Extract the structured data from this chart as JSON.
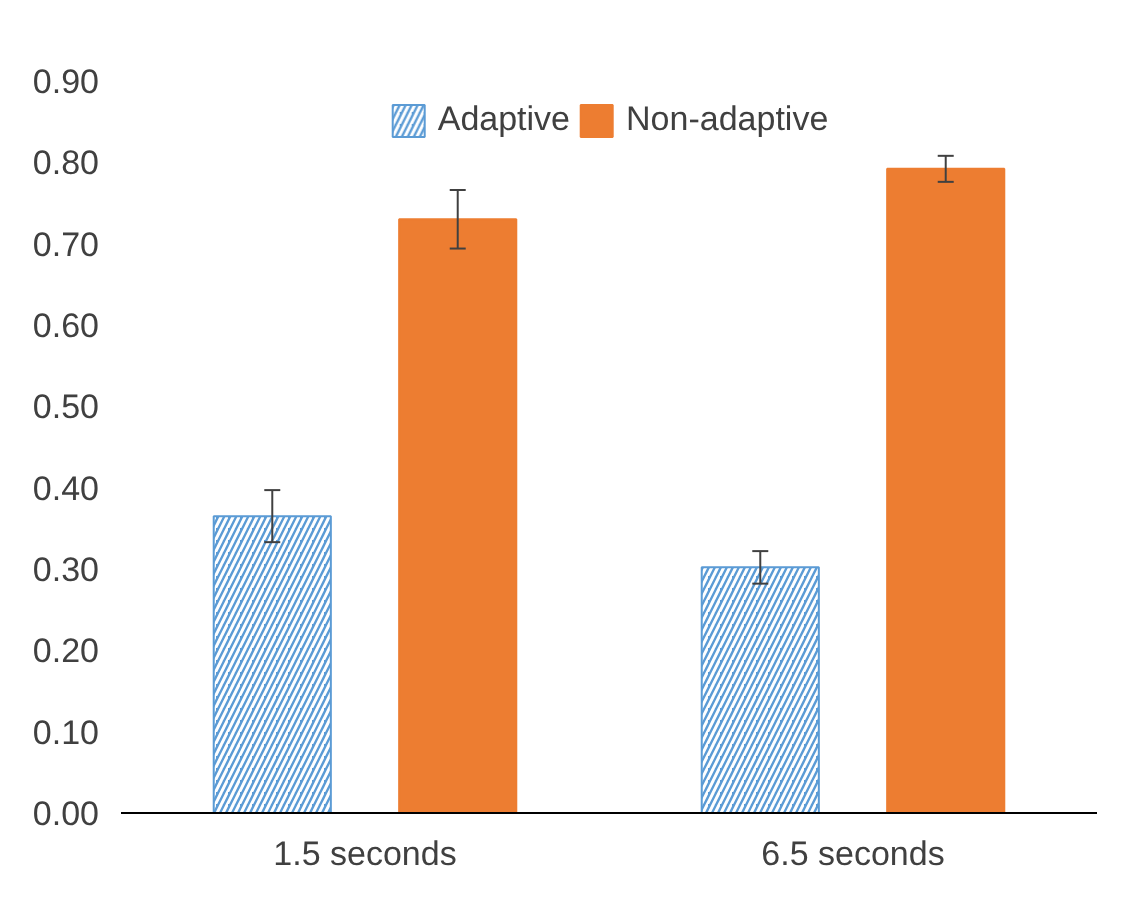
{
  "chart_data": {
    "type": "bar",
    "categories": [
      "1.5 seconds",
      "6.5 seconds"
    ],
    "series": [
      {
        "name": "Adaptive",
        "color": "#5b9bd5",
        "values": [
          0.365,
          0.302
        ],
        "errors": [
          0.032,
          0.02
        ]
      },
      {
        "name": "Non-adaptive",
        "color": "#ed7d31",
        "values": [
          0.73,
          0.792
        ],
        "errors": [
          0.036,
          0.016
        ]
      }
    ],
    "ylim": [
      0,
      0.9
    ],
    "yticks": [
      {
        "value": 0,
        "label": "0.00"
      },
      {
        "value": 0.1,
        "label": "0.10"
      },
      {
        "value": 0.2,
        "label": "0.20"
      },
      {
        "value": 0.3,
        "label": "0.30"
      },
      {
        "value": 0.4,
        "label": "0.40"
      },
      {
        "value": 0.5,
        "label": "0.50"
      },
      {
        "value": 0.6,
        "label": "0.60"
      },
      {
        "value": 0.7,
        "label": "0.70"
      },
      {
        "value": 0.8,
        "label": "0.80"
      },
      {
        "value": 0.9,
        "label": "0.90"
      }
    ],
    "grid": false,
    "legend": "top"
  }
}
